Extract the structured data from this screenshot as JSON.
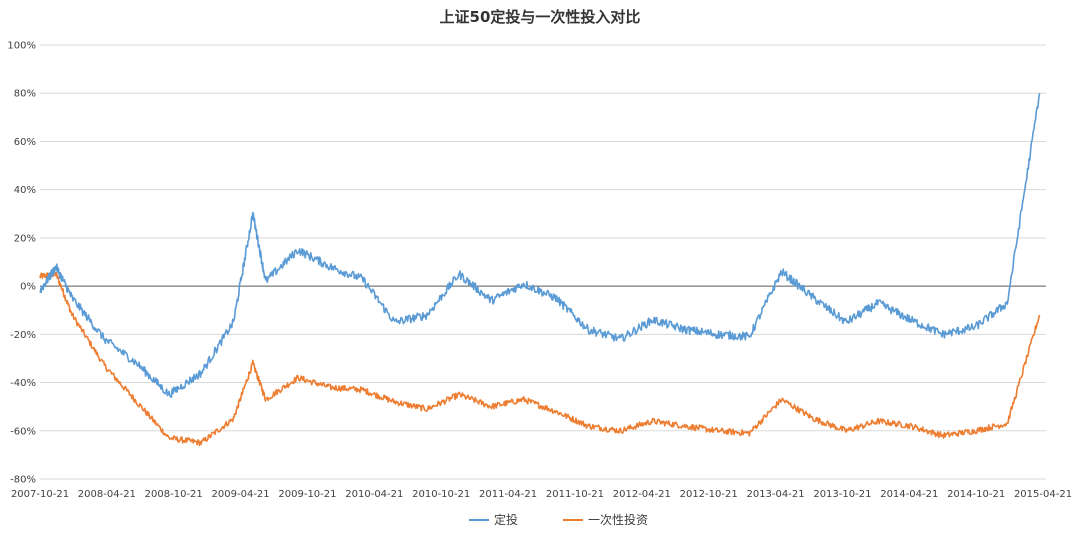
{
  "chart_data": {
    "type": "line",
    "title": "上证50定投与一次性投入对比",
    "xlabel": "",
    "ylabel": "",
    "ylim": [
      -0.8,
      1.0
    ],
    "y_ticks": [
      -0.8,
      -0.6,
      -0.4,
      -0.2,
      0,
      0.2,
      0.4,
      0.6,
      0.8,
      1.0
    ],
    "y_tick_labels": [
      "-80%",
      "-60%",
      "-40%",
      "-20%",
      "0%",
      "20%",
      "40%",
      "60%",
      "80%",
      "100%"
    ],
    "x_tick_labels": [
      "2007-10-21",
      "2008-04-21",
      "2008-10-21",
      "2009-04-21",
      "2009-10-21",
      "2010-04-21",
      "2010-10-21",
      "2011-04-21",
      "2011-10-21",
      "2012-04-21",
      "2012-10-21",
      "2013-04-21",
      "2013-10-21",
      "2014-04-21",
      "2014-10-21",
      "2015-04-21"
    ],
    "grid": true,
    "legend_position": "bottom",
    "x": [
      0,
      0.25,
      0.5,
      1,
      1.5,
      2,
      2.5,
      3,
      3.3,
      3.5,
      4,
      4.5,
      5,
      5.5,
      6,
      6.5,
      7,
      7.5,
      8,
      8.5,
      9,
      9.5,
      10,
      10.5,
      11,
      11.5,
      12,
      12.5,
      13,
      13.5,
      14,
      14.5,
      15,
      15.5
    ],
    "series": [
      {
        "name": "定投",
        "color": "#5B9BD5",
        "values": [
          -0.02,
          0.08,
          -0.05,
          -0.22,
          -0.32,
          -0.45,
          -0.36,
          -0.15,
          0.3,
          0.02,
          0.15,
          0.08,
          0.03,
          -0.15,
          -0.12,
          0.05,
          -0.06,
          0.01,
          -0.05,
          -0.18,
          -0.22,
          -0.14,
          -0.18,
          -0.2,
          -0.21,
          0.06,
          -0.05,
          -0.15,
          -0.07,
          -0.14,
          -0.2,
          -0.17,
          -0.07,
          0.8
        ]
      },
      {
        "name": "一次性投资",
        "color": "#ED7D31",
        "values": [
          0.04,
          0.05,
          -0.12,
          -0.33,
          -0.48,
          -0.63,
          -0.65,
          -0.55,
          -0.32,
          -0.47,
          -0.38,
          -0.42,
          -0.43,
          -0.48,
          -0.51,
          -0.45,
          -0.5,
          -0.47,
          -0.52,
          -0.58,
          -0.6,
          -0.56,
          -0.58,
          -0.6,
          -0.61,
          -0.47,
          -0.55,
          -0.6,
          -0.56,
          -0.58,
          -0.62,
          -0.6,
          -0.57,
          -0.12
        ]
      }
    ]
  }
}
